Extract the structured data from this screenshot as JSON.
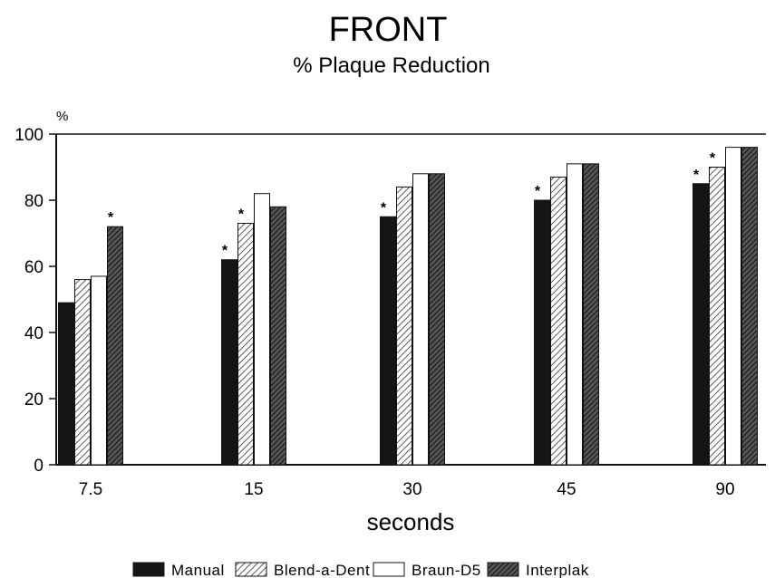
{
  "chart_data": {
    "type": "bar",
    "title": "FRONT",
    "subtitle": "% Plaque Reduction",
    "xlabel": "seconds",
    "ylabel": "%",
    "ylim": [
      0,
      100
    ],
    "yticks": [
      0,
      20,
      40,
      60,
      80,
      100
    ],
    "categories": [
      "7.5",
      "15",
      "30",
      "45",
      "90"
    ],
    "grid": false,
    "legend_position": "bottom",
    "series": [
      {
        "name": "Manual",
        "values": [
          49,
          62,
          75,
          80,
          85
        ],
        "stars": [
          false,
          true,
          true,
          true,
          true
        ],
        "color": "#151515",
        "pattern": "solid"
      },
      {
        "name": "Blend-a-Dent",
        "values": [
          56,
          73,
          84,
          87,
          90
        ],
        "stars": [
          false,
          true,
          false,
          false,
          true
        ],
        "color": "#9a9a9a",
        "pattern": "hatch-light"
      },
      {
        "name": "Braun-D5",
        "values": [
          57,
          82,
          88,
          91,
          96
        ],
        "stars": [
          false,
          false,
          false,
          false,
          false
        ],
        "color": "#ffffff",
        "pattern": "open"
      },
      {
        "name": "Interplak",
        "values": [
          72,
          78,
          88,
          91,
          96
        ],
        "stars": [
          true,
          false,
          false,
          false,
          false
        ],
        "color": "#3a3a3a",
        "pattern": "hatch-dark"
      }
    ],
    "annotation_symbol": "*"
  }
}
